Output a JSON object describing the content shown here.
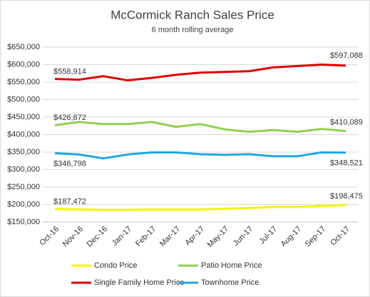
{
  "chart_data": {
    "type": "line",
    "title": "McCormick Ranch Sales Price",
    "subtitle": "6 month rolling average",
    "categories": [
      "Oct-16",
      "Nov-16",
      "Dec-16",
      "Jan-17",
      "Feb-17",
      "Mar-17",
      "Apr-17",
      "May-17",
      "Jun-17",
      "Jul-17",
      "Aug-17",
      "Sep-17",
      "Oct-17"
    ],
    "series": [
      {
        "name": "Condo Price",
        "color": "#f5f500",
        "values": [
          187472,
          186000,
          185000,
          185000,
          186000,
          186000,
          186000,
          188000,
          190000,
          193000,
          193000,
          196000,
          198475
        ],
        "value_labels": [
          "$187,472",
          null,
          null,
          null,
          null,
          null,
          null,
          null,
          null,
          null,
          null,
          null,
          "$198,475"
        ]
      },
      {
        "name": "Patio Home Price",
        "color": "#92d050",
        "values": [
          426872,
          436000,
          430000,
          430000,
          436000,
          422000,
          430000,
          415000,
          408000,
          413000,
          408000,
          416000,
          410089
        ],
        "value_labels": [
          "$426,872",
          null,
          null,
          null,
          null,
          null,
          null,
          null,
          null,
          null,
          null,
          null,
          "$410,089"
        ]
      },
      {
        "name": "Single Family Home Price",
        "color": "#e00000",
        "values": [
          558914,
          557000,
          567000,
          555000,
          562000,
          571000,
          577000,
          579000,
          581000,
          592000,
          596000,
          600000,
          597088
        ],
        "value_labels": [
          "$558,914",
          null,
          null,
          null,
          null,
          null,
          null,
          null,
          null,
          null,
          null,
          null,
          "$597,088"
        ]
      },
      {
        "name": "Townhome Price",
        "color": "#1fa8e0",
        "values": [
          346798,
          343000,
          332000,
          343000,
          349000,
          349000,
          344000,
          342000,
          344000,
          338000,
          338000,
          349000,
          348521
        ],
        "value_labels": [
          "$346,798",
          null,
          null,
          null,
          null,
          null,
          null,
          null,
          null,
          null,
          null,
          null,
          "$348,521"
        ]
      }
    ],
    "ylim": [
      150000,
      650000
    ],
    "yticks": [
      {
        "value": 150000,
        "label": "$150,000"
      },
      {
        "value": 200000,
        "label": "$200,000"
      },
      {
        "value": 250000,
        "label": "$250,000"
      },
      {
        "value": 300000,
        "label": "$300,000"
      },
      {
        "value": 350000,
        "label": "$350,000"
      },
      {
        "value": 400000,
        "label": "$400,000"
      },
      {
        "value": 450000,
        "label": "$450,000"
      },
      {
        "value": 500000,
        "label": "$500,000"
      },
      {
        "value": 550000,
        "label": "$550,000"
      },
      {
        "value": 600000,
        "label": "$600,000"
      },
      {
        "value": 650000,
        "label": "$650,000"
      }
    ],
    "grid": true,
    "legend": "bottom"
  }
}
